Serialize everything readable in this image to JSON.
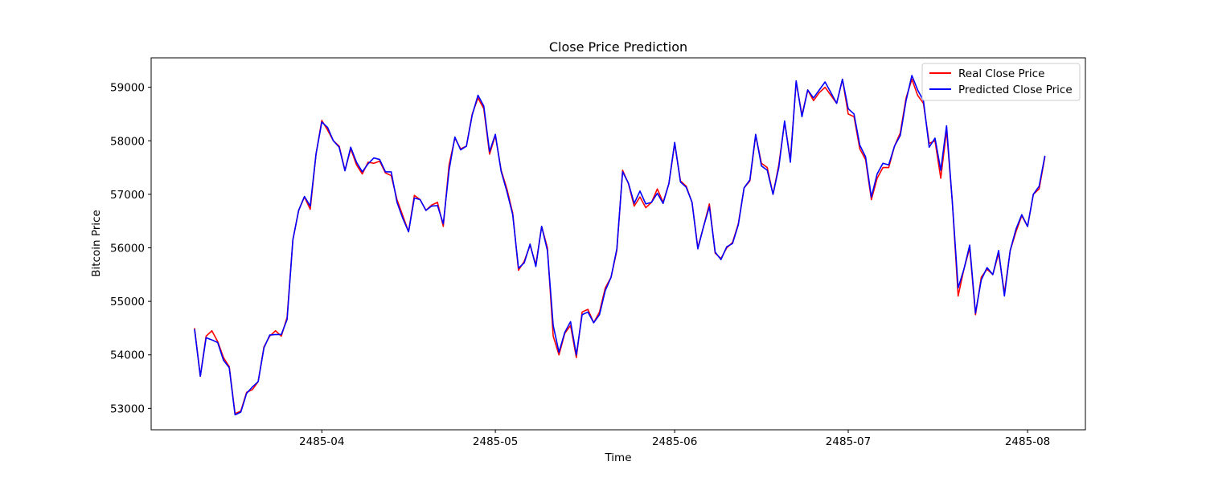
{
  "chart_data": {
    "type": "line",
    "title": "Close Price Prediction",
    "xlabel": "Time",
    "ylabel": "Bitcoin Price",
    "x_ticks": [
      {
        "value": "2485-04",
        "day": 22
      },
      {
        "value": "2485-05",
        "day": 52
      },
      {
        "value": "2485-06",
        "day": 83
      },
      {
        "value": "2485-07",
        "day": 113
      },
      {
        "value": "2485-08",
        "day": 144
      }
    ],
    "xlim_day": [
      -7.5,
      154
    ],
    "ylim": [
      52600,
      59550
    ],
    "y_ticks": [
      53000,
      54000,
      55000,
      56000,
      57000,
      58000,
      59000
    ],
    "grid": false,
    "legend_position": "top-right",
    "colors": {
      "real": "#ff0000",
      "predicted": "#0000ff"
    },
    "series": [
      {
        "name": "Real Close Price",
        "values": [
          54500,
          53600,
          54350,
          54450,
          54250,
          53950,
          53780,
          52900,
          52950,
          53300,
          53350,
          53500,
          54150,
          54350,
          54450,
          54350,
          54700,
          56150,
          56700,
          56950,
          56720,
          57750,
          58380,
          58200,
          58000,
          57900,
          57450,
          57850,
          57550,
          57380,
          57600,
          57580,
          57620,
          57400,
          57350,
          56900,
          56600,
          56300,
          56980,
          56900,
          56700,
          56800,
          56850,
          56400,
          57550,
          58050,
          57850,
          57900,
          58500,
          58800,
          58600,
          57750,
          58100,
          57450,
          57100,
          56650,
          55580,
          55750,
          56050,
          55680,
          56400,
          56000,
          54350,
          54000,
          54400,
          54550,
          53950,
          54800,
          54850,
          54600,
          54800,
          55250,
          55450,
          55950,
          57450,
          57200,
          56780,
          56950,
          56750,
          56850,
          57100,
          56850,
          57200,
          57950,
          57250,
          57150,
          56850,
          56000,
          56400,
          56820,
          55900,
          55800,
          56000,
          56100,
          56450,
          57120,
          57250,
          58100,
          57580,
          57500,
          57000,
          57550,
          58350,
          57650,
          59100,
          58480,
          58950,
          58750,
          58900,
          59000,
          58850,
          58700,
          59150,
          58500,
          58450,
          57850,
          57650,
          56900,
          57300,
          57500,
          57500,
          57900,
          58150,
          58800,
          59150,
          58850,
          58700,
          57950,
          58000,
          57300,
          58200,
          56850,
          55100,
          55600,
          56000,
          54750,
          55450,
          55600,
          55500,
          55900,
          55150,
          55950,
          56300,
          56600,
          56400,
          57000,
          57100,
          57700
        ]
      },
      {
        "name": "Predicted Close Price",
        "values": [
          54480,
          53600,
          54320,
          54280,
          54230,
          53900,
          53760,
          52880,
          52930,
          53280,
          53400,
          53500,
          54130,
          54370,
          54380,
          54380,
          54660,
          56150,
          56700,
          56960,
          56780,
          57750,
          58350,
          58250,
          58000,
          57880,
          57440,
          57880,
          57600,
          57420,
          57570,
          57680,
          57650,
          57420,
          57420,
          56850,
          56550,
          56300,
          56930,
          56900,
          56700,
          56780,
          56790,
          56450,
          57450,
          58070,
          57830,
          57900,
          58480,
          58850,
          58650,
          57800,
          58120,
          57430,
          57050,
          56620,
          55620,
          55720,
          56070,
          55650,
          56400,
          55950,
          54550,
          54050,
          54420,
          54620,
          54000,
          54750,
          54800,
          54600,
          54750,
          55200,
          55450,
          55980,
          57420,
          57210,
          56830,
          57060,
          56820,
          56850,
          57020,
          56830,
          57200,
          57970,
          57230,
          57130,
          56850,
          55980,
          56400,
          56770,
          55920,
          55780,
          56020,
          56080,
          56430,
          57120,
          57270,
          58120,
          57530,
          57450,
          57000,
          57500,
          58370,
          57600,
          59120,
          58450,
          58950,
          58800,
          58950,
          59100,
          58900,
          58700,
          59150,
          58600,
          58500,
          57920,
          57700,
          56950,
          57380,
          57580,
          57550,
          57900,
          58100,
          58750,
          59220,
          58950,
          58750,
          57880,
          58050,
          57450,
          58280,
          56850,
          55250,
          55600,
          56050,
          54780,
          55400,
          55630,
          55500,
          55950,
          55100,
          55950,
          56350,
          56620,
          56400,
          57000,
          57150,
          57720
        ]
      }
    ]
  }
}
